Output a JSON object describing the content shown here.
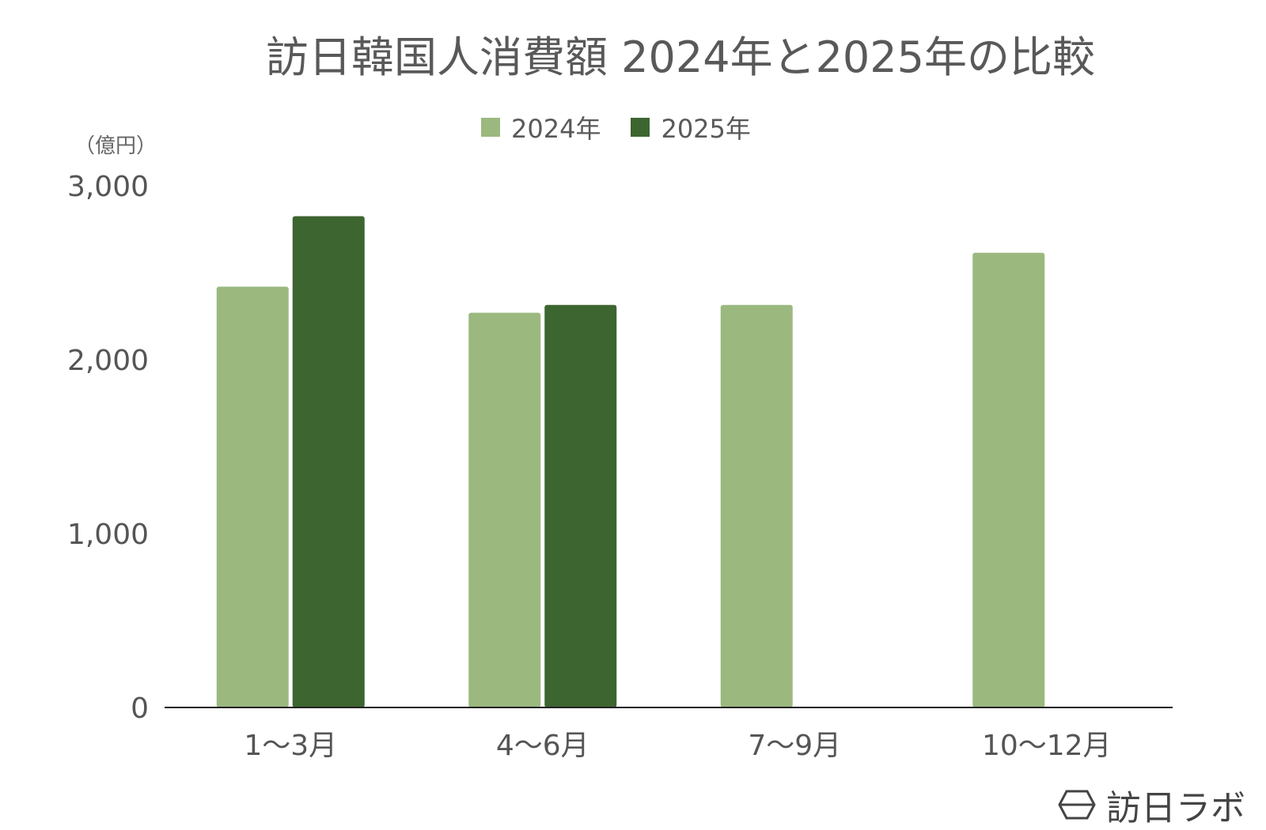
{
  "chart_data": {
    "type": "bar",
    "title": "訪日韓国人消費額 2024年と2025年の比較",
    "unit_label": "（億円）",
    "categories": [
      "1～3月",
      "4～6月",
      "7～9月",
      "10～12月"
    ],
    "series": [
      {
        "name": "2024年",
        "color": "#9bb97f",
        "values": [
          2420,
          2270,
          2315,
          2615
        ]
      },
      {
        "name": "2025年",
        "color": "#3d6530",
        "values": [
          2825,
          2315,
          null,
          null
        ]
      }
    ],
    "ylim": [
      0,
      3000
    ],
    "yticks": [
      0,
      1000,
      2000,
      3000
    ],
    "ytick_labels": [
      "0",
      "1,000",
      "2,000",
      "3,000"
    ],
    "xlabel": "",
    "ylabel": "",
    "legend_position": "top",
    "grid": false
  },
  "watermark": {
    "text": "訪日ラボ",
    "icon": "hexagon-logo-icon"
  }
}
